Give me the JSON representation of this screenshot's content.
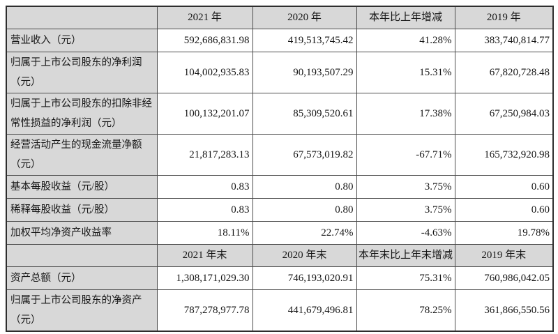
{
  "colors": {
    "header_background": "#d8d8d8",
    "label_column_background": "#d8d8d8",
    "border": "#4c4c4c",
    "outer_border": "#2e2e2e",
    "text": "#161616",
    "page_background": "#ffffff"
  },
  "table": {
    "section1": {
      "header": {
        "corner": "",
        "col_2021": "2021 年",
        "col_2020": "2020 年",
        "col_change": "本年比上年增减",
        "col_2019": "2019 年"
      },
      "rows": [
        {
          "label": "营业收入（元）",
          "v2021": "592,686,831.98",
          "v2020": "419,513,745.42",
          "change": "41.28%",
          "v2019": "383,740,814.77"
        },
        {
          "label": "归属于上市公司股东的净利润（元）",
          "v2021": "104,002,935.83",
          "v2020": "90,193,507.29",
          "change": "15.31%",
          "v2019": "67,820,728.48"
        },
        {
          "label": "归属于上市公司股东的扣除非经常性损益的净利润（元）",
          "v2021": "100,132,201.07",
          "v2020": "85,309,520.61",
          "change": "17.38%",
          "v2019": "67,250,984.03"
        },
        {
          "label": "经营活动产生的现金流量净额（元）",
          "v2021": "21,817,283.13",
          "v2020": "67,573,019.82",
          "change": "-67.71%",
          "v2019": "165,732,920.98"
        },
        {
          "label": "基本每股收益（元/股）",
          "v2021": "0.83",
          "v2020": "0.80",
          "change": "3.75%",
          "v2019": "0.60"
        },
        {
          "label": "稀释每股收益（元/股）",
          "v2021": "0.83",
          "v2020": "0.80",
          "change": "3.75%",
          "v2019": "0.60"
        },
        {
          "label": "加权平均净资产收益率",
          "v2021": "18.11%",
          "v2020": "22.74%",
          "change": "-4.63%",
          "v2019": "19.78%"
        }
      ]
    },
    "section2": {
      "header": {
        "corner": "",
        "col_2021": "2021 年末",
        "col_2020": "2020 年末",
        "col_change": "本年末比上年末增减",
        "col_2019": "2019 年末"
      },
      "rows": [
        {
          "label": "资产总额（元）",
          "v2021": "1,308,171,029.30",
          "v2020": "746,193,020.91",
          "change": "75.31%",
          "v2019": "760,986,042.05"
        },
        {
          "label": "归属于上市公司股东的净资产（元）",
          "v2021": "787,278,977.78",
          "v2020": "441,679,496.81",
          "change": "78.25%",
          "v2019": "361,866,550.56"
        }
      ]
    }
  }
}
